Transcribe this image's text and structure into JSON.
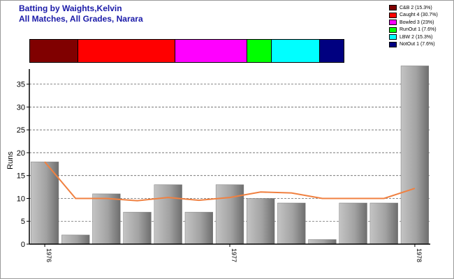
{
  "header": {
    "title": "Batting by Waights,Kelvin",
    "subtitle": "All Matches, All Grades, Narara"
  },
  "legend": [
    {
      "label": "C&B 2 (15.3%)",
      "color": "#800000",
      "fraction": 0.153
    },
    {
      "label": "Caught 4 (30.7%)",
      "color": "#ff0000",
      "fraction": 0.307
    },
    {
      "label": "Bowled 3 (23%)",
      "color": "#ff00ff",
      "fraction": 0.23
    },
    {
      "label": "RunOut 1 (7.6%)",
      "color": "#00ff00",
      "fraction": 0.076
    },
    {
      "label": "LBW 2 (15.3%)",
      "color": "#00ffff",
      "fraction": 0.153
    },
    {
      "label": "NotOut 1 (7.6%)",
      "color": "#000080",
      "fraction": 0.076
    }
  ],
  "chart_data": {
    "type": "bar",
    "ylabel": "Runs",
    "ylim": [
      0,
      38
    ],
    "yticks": [
      "0",
      "5",
      "10",
      "15",
      "20",
      "25",
      "30",
      "35"
    ],
    "grid": true,
    "x_tick_labels": [
      {
        "label": "1976",
        "index": 0
      },
      {
        "label": "1977",
        "index": 6
      },
      {
        "label": "1978",
        "index": 12
      }
    ],
    "series": [
      {
        "type": "bar",
        "values": [
          18,
          2,
          11,
          7,
          13,
          7,
          13,
          10,
          9,
          1,
          9,
          9,
          39
        ],
        "color": "#a8a8a8"
      },
      {
        "type": "line",
        "values": [
          18,
          10,
          10,
          9.5,
          10.2,
          9.6,
          10.2,
          11.4,
          11.2,
          10,
          10,
          10,
          12.2
        ],
        "color": "#f08040"
      }
    ]
  }
}
